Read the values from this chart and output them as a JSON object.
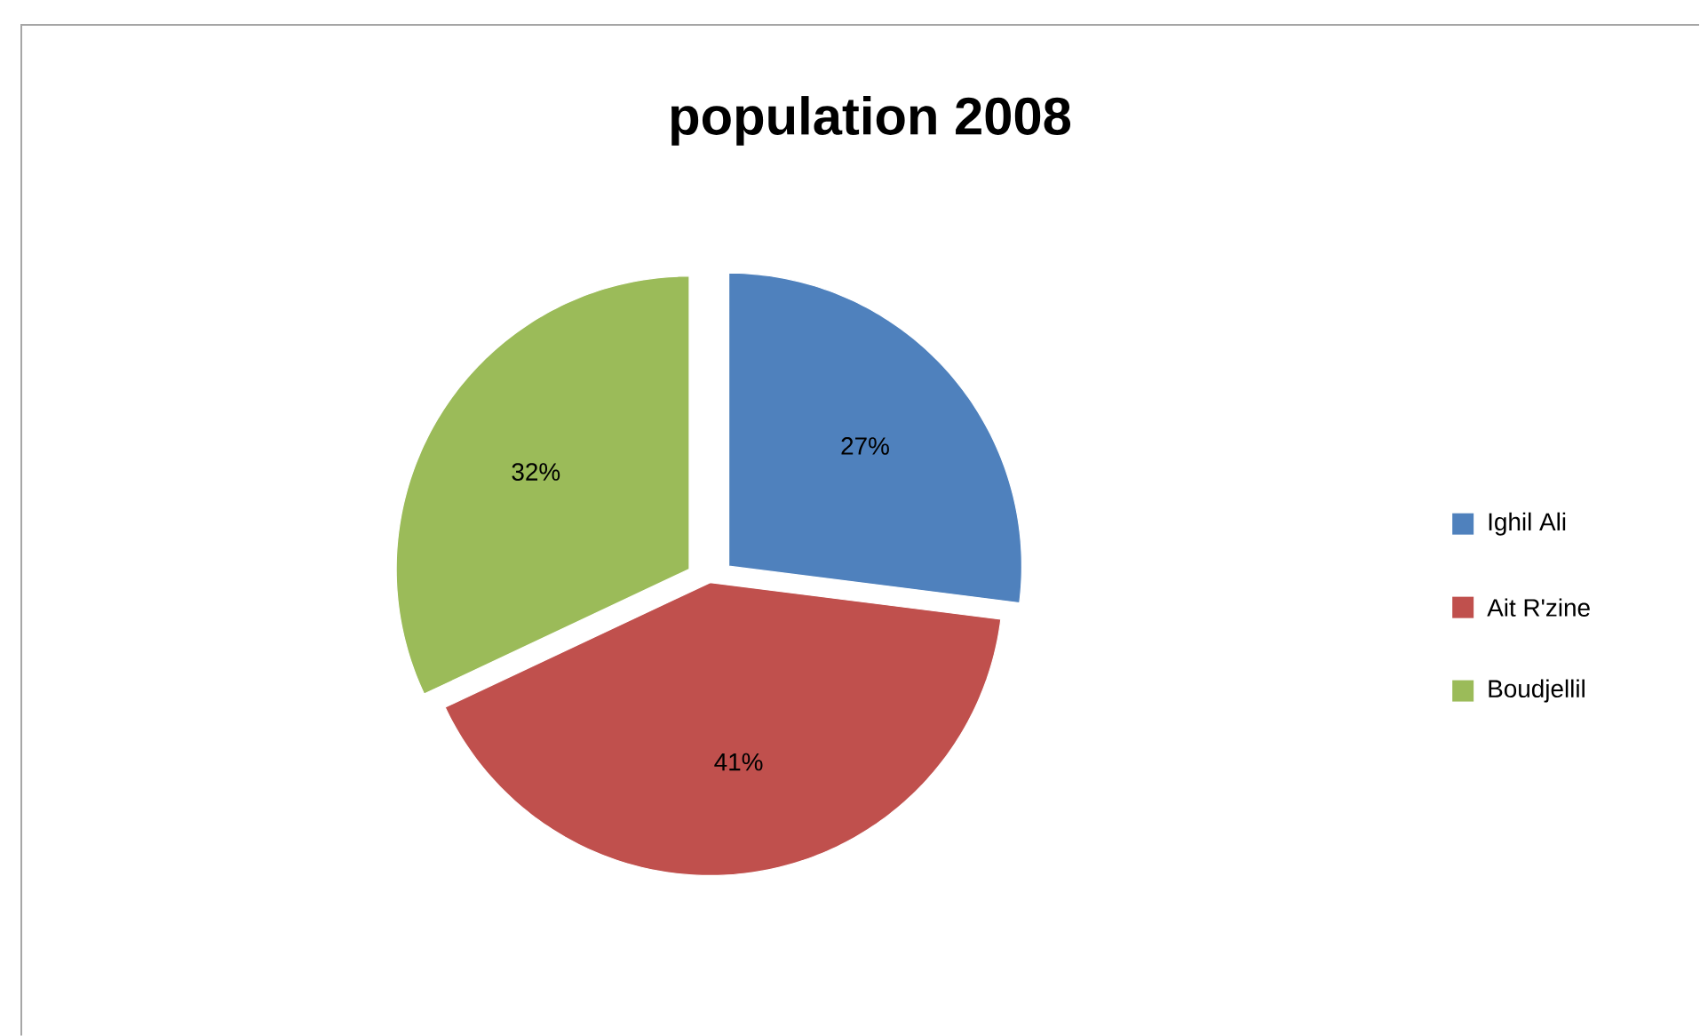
{
  "chart_data": {
    "type": "pie",
    "title": "population 2008",
    "categories": [
      "Ighil Ali",
      "Ait R'zine",
      "Boudjellil"
    ],
    "values": [
      27,
      41,
      32
    ],
    "value_labels": [
      "27%",
      "41%",
      "32%"
    ],
    "colors": [
      "#4f81bd",
      "#c0504d",
      "#9bbb59"
    ],
    "legend": "right"
  }
}
